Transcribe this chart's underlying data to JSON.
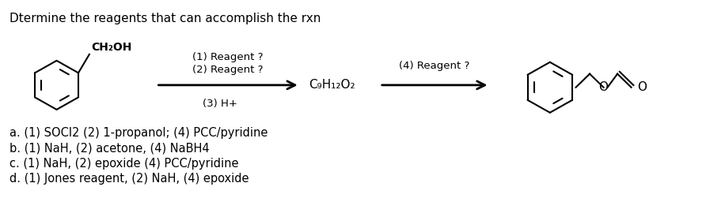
{
  "title": "Dtermine the reagents that can accomplish the rxn",
  "title_fontsize": 11,
  "answer_lines": [
    "a. (1) SOCl2 (2) 1-propanol; (4) PCC/pyridine",
    "b. (1) NaH, (2) acetone, (4) NaBH4",
    "c. (1) NaH, (2) epoxide (4) PCC/pyridine",
    "d. (1) Jones reagent, (2) NaH, (4) epoxide"
  ],
  "answer_fontsize": 10.5,
  "reagent_labels": [
    "(1) Reagent ?",
    "(2) Reagent ?",
    "(3) H+"
  ],
  "intermediate": "C₉H₁₂O₂",
  "reagent4": "(4) Reagent ?",
  "background_color": "#ffffff",
  "text_color": "#000000"
}
